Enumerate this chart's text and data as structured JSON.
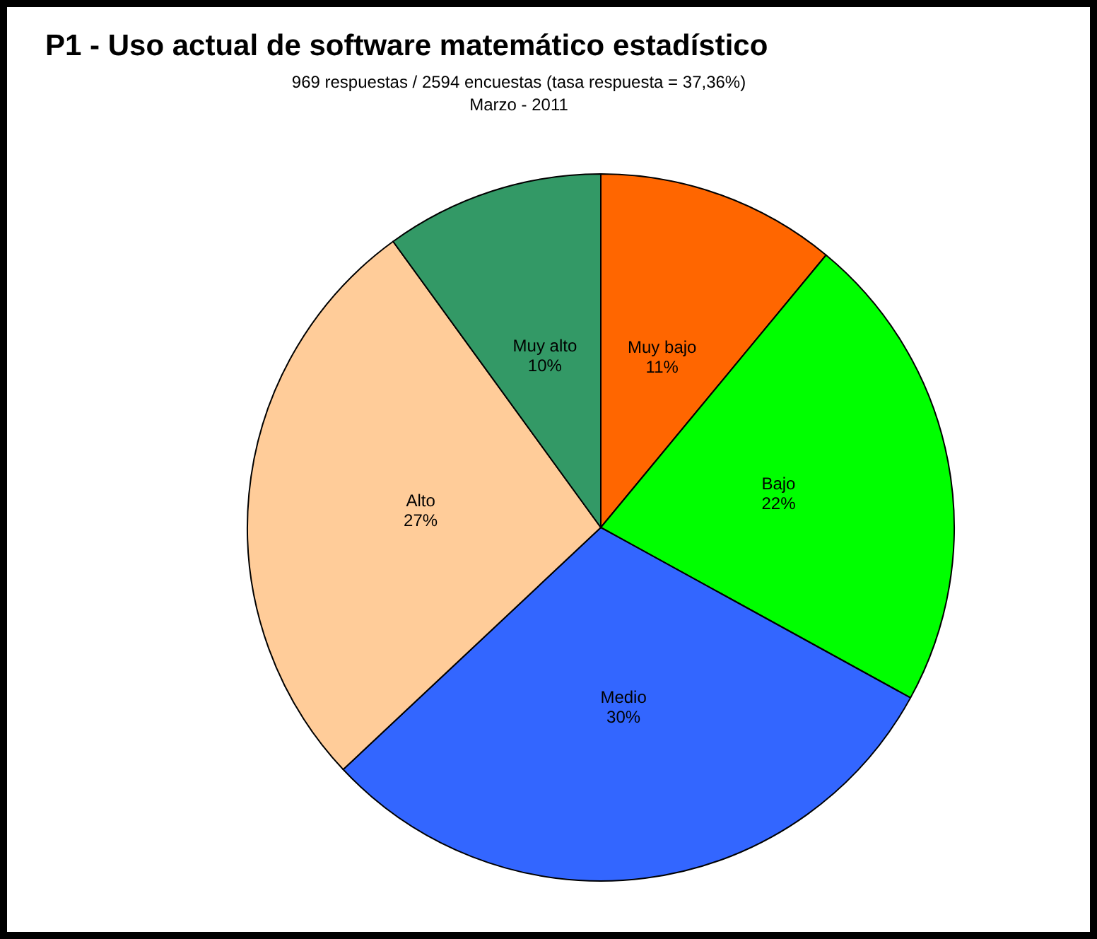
{
  "chart_data": {
    "type": "pie",
    "title": "P1 - Uso actual de software matemático estadístico",
    "subtitle": "969 respuestas / 2594 encuestas (tasa respuesta = 37,36%)\nMarzo - 2011",
    "categories": [
      "Muy bajo",
      "Bajo",
      "Medio",
      "Alto",
      "Muy alto"
    ],
    "values": [
      11,
      22,
      30,
      27,
      10
    ],
    "value_labels": [
      "11%",
      "22%",
      "30%",
      "27%",
      "10%"
    ],
    "colors": [
      "#ff6600",
      "#00ff00",
      "#3366ff",
      "#ffcc99",
      "#339966"
    ],
    "legend": false
  }
}
